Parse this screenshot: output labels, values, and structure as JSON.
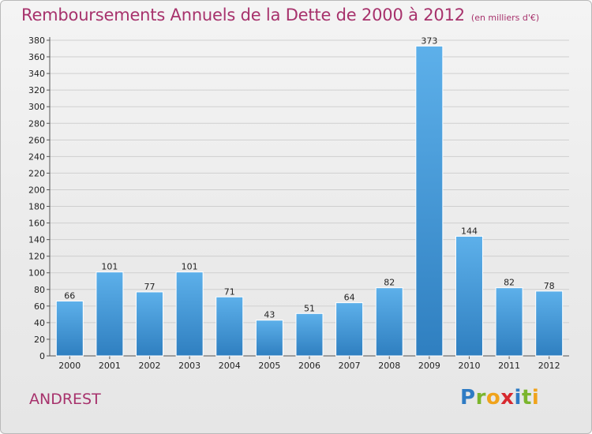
{
  "header": {
    "title": "Remboursements Annuels de la Dette de 2000 à 2012",
    "unit": "(en milliers d'€)"
  },
  "footer": {
    "city": "ANDREST",
    "brand_letters": [
      {
        "ch": "P",
        "color": "#2e7bc4"
      },
      {
        "ch": "r",
        "color": "#7bb52d"
      },
      {
        "ch": "o",
        "color": "#f0a31b"
      },
      {
        "ch": "x",
        "color": "#d7292f"
      },
      {
        "ch": "i",
        "color": "#2e7bc4"
      },
      {
        "ch": "t",
        "color": "#7bb52d"
      },
      {
        "ch": "i",
        "color": "#f0a31b"
      }
    ]
  },
  "colors": {
    "title": "#a7326c",
    "bar_light": "#5db0ea",
    "bar_dark": "#2f7fc0",
    "grid": "#cfcfcf"
  },
  "chart_data": {
    "type": "bar",
    "title": "Remboursements Annuels de la Dette de 2000 à 2012",
    "xlabel": "",
    "ylabel": "",
    "categories": [
      "2000",
      "2001",
      "2002",
      "2003",
      "2004",
      "2005",
      "2006",
      "2007",
      "2008",
      "2009",
      "2010",
      "2011",
      "2012"
    ],
    "values": [
      66,
      101,
      77,
      101,
      71,
      43,
      51,
      64,
      82,
      373,
      144,
      82,
      78
    ],
    "ylim": [
      0,
      380
    ],
    "yticks": [
      0,
      20,
      40,
      60,
      80,
      100,
      120,
      140,
      160,
      180,
      200,
      220,
      240,
      260,
      280,
      300,
      320,
      340,
      360,
      380
    ],
    "grid": true,
    "legend": "none"
  }
}
